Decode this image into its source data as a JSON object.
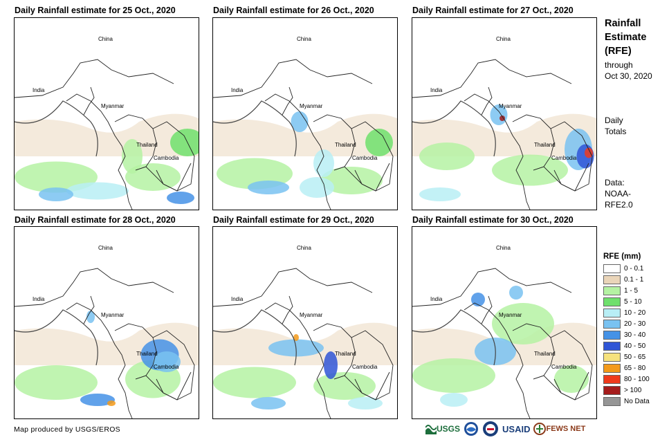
{
  "panels": [
    {
      "title": "Daily Rainfall estimate for 25 Oct., 2020"
    },
    {
      "title": "Daily Rainfall estimate for 26 Oct., 2020"
    },
    {
      "title": "Daily Rainfall estimate for 27 Oct., 2020"
    },
    {
      "title": "Daily Rainfall estimate for 28 Oct., 2020"
    },
    {
      "title": "Daily Rainfall estimate for 29 Oct., 2020"
    },
    {
      "title": "Daily Rainfall estimate for 30 Oct., 2020"
    }
  ],
  "map_labels": {
    "china": "China",
    "india": "India",
    "myanmar": "Myanmar",
    "thailand": "Thailand",
    "cambodia": "Cambodia"
  },
  "sidebar": {
    "title_line1": "Rainfall",
    "title_line2": "Estimate",
    "title_line3": "(RFE)",
    "through": "through",
    "date": "Oct 30, 2020",
    "daily": "Daily",
    "totals": "Totals",
    "data": "Data:",
    "source1": "NOAA-",
    "source2": "RFE2.0"
  },
  "legend": {
    "title": "RFE (mm)",
    "items": [
      {
        "label": "0 - 0.1",
        "color": "#ffffff"
      },
      {
        "label": "0.1 - 1",
        "color": "#ead5b9"
      },
      {
        "label": "1 - 5",
        "color": "#b5f2a3"
      },
      {
        "label": "5 - 10",
        "color": "#6fe06c"
      },
      {
        "label": "10 - 20",
        "color": "#b8eef5"
      },
      {
        "label": "20 - 30",
        "color": "#79c2f1"
      },
      {
        "label": "30 - 40",
        "color": "#4592e6"
      },
      {
        "label": "40 - 50",
        "color": "#2f55d6"
      },
      {
        "label": "50 - 65",
        "color": "#f6e27d"
      },
      {
        "label": "65 - 80",
        "color": "#f39a1a"
      },
      {
        "label": "80 - 100",
        "color": "#ef3a1c"
      },
      {
        "label": "> 100",
        "color": "#a51c1c"
      },
      {
        "label": "No Data",
        "color": "#969696"
      }
    ]
  },
  "credit": "Map produced by USGS/EROS",
  "logos": {
    "usgs": "USGS",
    "usaid": "USAID",
    "fewsnet": "FEWS NET"
  }
}
